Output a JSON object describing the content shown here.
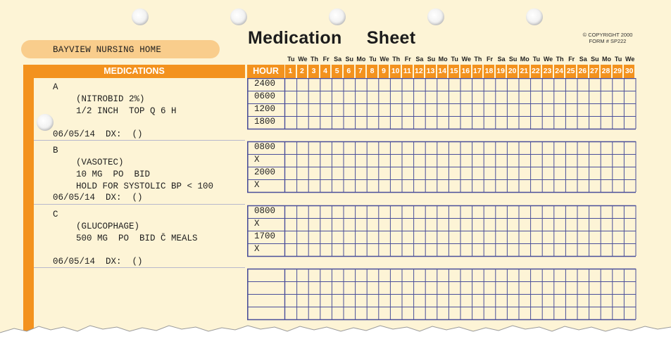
{
  "sheet": {
    "title": "Medication Sheet",
    "copyright_line1": "© COPYRIGHT 2000",
    "copyright_line2": "FORM # SP222",
    "facility": "BAYVIEW NURSING HOME"
  },
  "headers": {
    "medications": "MEDICATIONS",
    "hour": "HOUR"
  },
  "days": [
    {
      "name": "Tu",
      "num": "1"
    },
    {
      "name": "We",
      "num": "2"
    },
    {
      "name": "Th",
      "num": "3"
    },
    {
      "name": "Fr",
      "num": "4"
    },
    {
      "name": "Sa",
      "num": "5"
    },
    {
      "name": "Su",
      "num": "6"
    },
    {
      "name": "Mo",
      "num": "7"
    },
    {
      "name": "Tu",
      "num": "8"
    },
    {
      "name": "We",
      "num": "9"
    },
    {
      "name": "Th",
      "num": "10"
    },
    {
      "name": "Fr",
      "num": "11"
    },
    {
      "name": "Sa",
      "num": "12"
    },
    {
      "name": "Su",
      "num": "13"
    },
    {
      "name": "Mo",
      "num": "14"
    },
    {
      "name": "Tu",
      "num": "15"
    },
    {
      "name": "We",
      "num": "16"
    },
    {
      "name": "Th",
      "num": "17"
    },
    {
      "name": "Fr",
      "num": "18"
    },
    {
      "name": "Sa",
      "num": "19"
    },
    {
      "name": "Su",
      "num": "20"
    },
    {
      "name": "Mo",
      "num": "21"
    },
    {
      "name": "Tu",
      "num": "22"
    },
    {
      "name": "We",
      "num": "23"
    },
    {
      "name": "Th",
      "num": "24"
    },
    {
      "name": "Fr",
      "num": "25"
    },
    {
      "name": "Sa",
      "num": "26"
    },
    {
      "name": "Su",
      "num": "27"
    },
    {
      "name": "Mo",
      "num": "28"
    },
    {
      "name": "Tu",
      "num": "29"
    },
    {
      "name": "We",
      "num": "30"
    }
  ],
  "medications": [
    {
      "letter": "A",
      "name": "(NITROBID 2%)",
      "dose": "1/2 INCH  TOP Q 6 H",
      "note": "",
      "date_dx": "06/05/14  DX:  ()",
      "hours": [
        "2400",
        "0600",
        "1200",
        "1800"
      ]
    },
    {
      "letter": "B",
      "name": "(VASOTEC)",
      "dose": "10 MG  PO  BID",
      "note": "HOLD FOR SYSTOLIC BP < 100",
      "date_dx": "06/05/14  DX:  ()",
      "hours": [
        "0800",
        "X",
        "2000",
        "X"
      ]
    },
    {
      "letter": "C",
      "name": "(GLUCOPHAGE)",
      "dose": "500 MG  PO  BID C̄ MEALS",
      "note": "",
      "date_dx": "06/05/14  DX:  ()",
      "hours": [
        "0800",
        "X",
        "1700",
        "X"
      ]
    },
    {
      "letter": "",
      "name": "",
      "dose": "",
      "note": "",
      "date_dx": "",
      "hours": [
        "",
        "",
        "",
        ""
      ]
    }
  ],
  "colors": {
    "paper": "#fdf4d6",
    "accent_orange": "#f3921e",
    "facility_pill": "#f9cd8c",
    "grid_line": "#4a4f9a"
  }
}
